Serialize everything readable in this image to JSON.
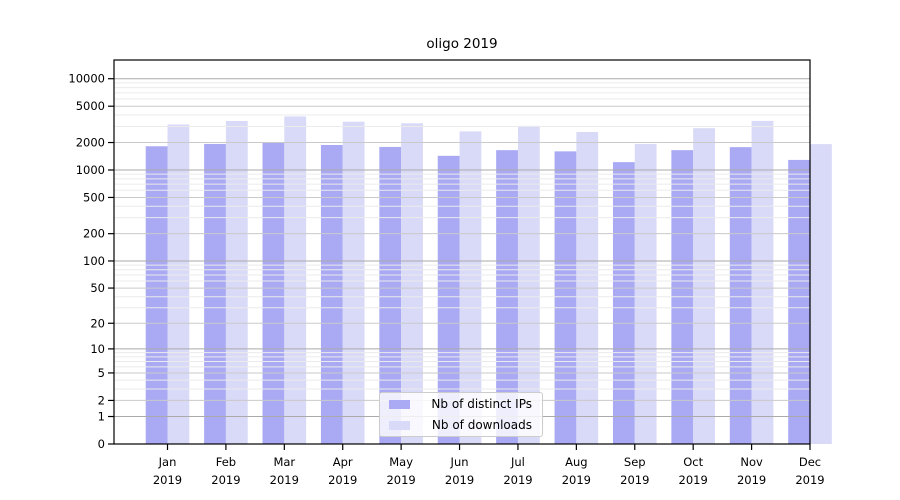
{
  "figure": {
    "background": "#ffffff"
  },
  "chart_data": {
    "type": "bar",
    "title": "oligo 2019",
    "categories": [
      "Jan 2019",
      "Feb 2019",
      "Mar 2019",
      "Apr 2019",
      "May 2019",
      "Jun 2019",
      "Jul 2019",
      "Aug 2019",
      "Sep 2019",
      "Oct 2019",
      "Nov 2019",
      "Dec 2019"
    ],
    "series": [
      {
        "name": "Nb of distinct IPs",
        "color": "#a9a9f4",
        "values": [
          1820,
          1930,
          1990,
          1880,
          1790,
          1430,
          1650,
          1600,
          1220,
          1650,
          1780,
          1290
        ]
      },
      {
        "name": "Nb of downloads",
        "color": "#d9d9f8",
        "values": [
          3150,
          3440,
          3860,
          3380,
          3250,
          2650,
          3050,
          2610,
          1930,
          2870,
          3450,
          1920
        ]
      }
    ],
    "xlabel": "",
    "ylabel": "",
    "y_scale": "log10(value+1)",
    "y_ticks": [
      0,
      1,
      2,
      5,
      10,
      20,
      50,
      100,
      200,
      500,
      1000,
      2000,
      5000,
      10000
    ],
    "ylim": [
      0,
      16000
    ],
    "grid": "horizontal, minor log gridlines at 1-9 per decade, drawn over bars",
    "legend_position": "inside-bottom-center"
  },
  "colors": {
    "bar_ips": "#a9a9f4",
    "bar_downloads": "#d9d9f8",
    "grid_major": "#aaaaaa",
    "grid_mid": "#cacaca",
    "grid_minor": "#ebebeb",
    "axis": "#000000",
    "text": "#000000",
    "legend_border": "#cccccc"
  }
}
